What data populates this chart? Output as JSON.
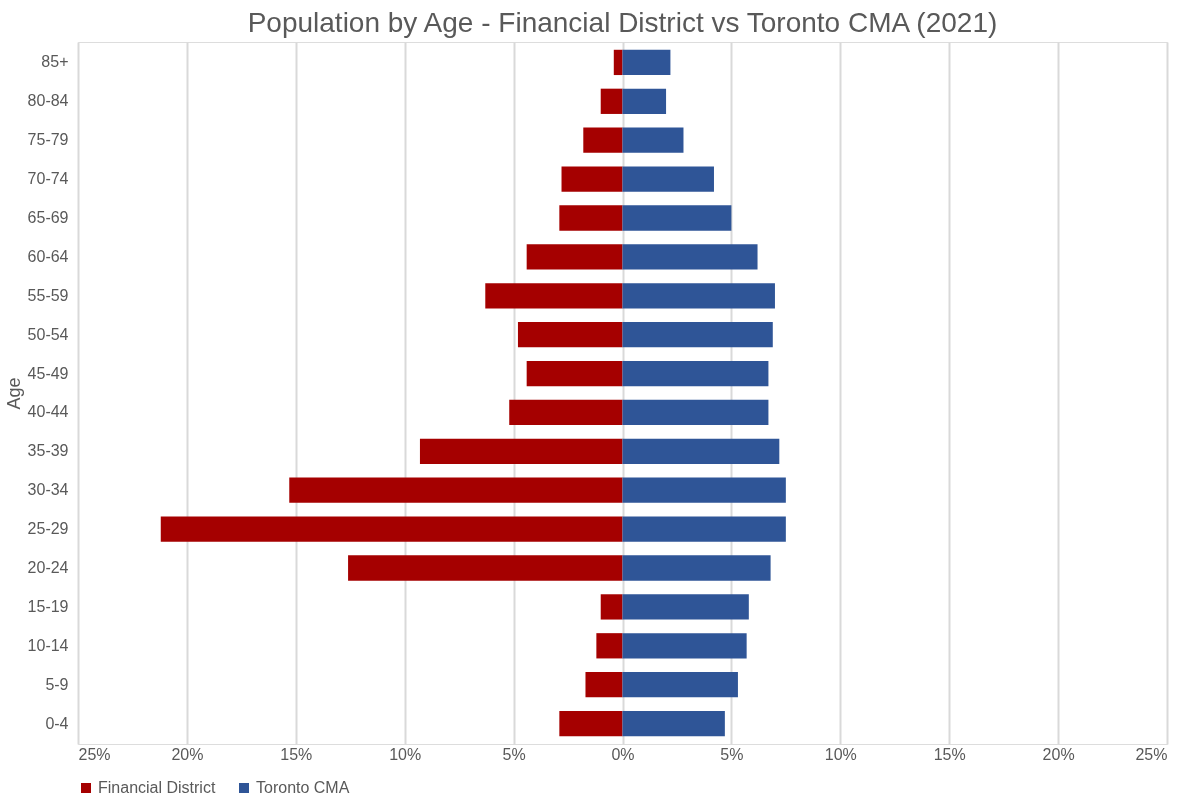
{
  "chart_data": {
    "type": "bar",
    "orientation": "horizontal",
    "title": "Population by Age - Financial District vs Toronto CMA (2021)",
    "ylabel": "Age",
    "categories": [
      "85+",
      "80-84",
      "75-79",
      "70-74",
      "65-69",
      "60-64",
      "55-59",
      "50-54",
      "45-49",
      "40-44",
      "35-39",
      "30-34",
      "25-29",
      "20-24",
      "15-19",
      "10-14",
      "5-9",
      "0-4"
    ],
    "series": [
      {
        "name": "Financial District",
        "color": "#a50000",
        "values": [
          -0.4,
          -1.0,
          -1.8,
          -2.8,
          -2.9,
          -4.4,
          -6.3,
          -4.8,
          -4.4,
          -5.2,
          -9.3,
          -15.3,
          -21.2,
          -12.6,
          -1.0,
          -1.2,
          -1.7,
          -2.9
        ]
      },
      {
        "name": "Toronto CMA",
        "color": "#2f5597",
        "values": [
          2.2,
          2.0,
          2.8,
          4.2,
          5.0,
          6.2,
          7.0,
          6.9,
          6.7,
          6.7,
          7.2,
          7.5,
          7.5,
          6.8,
          5.8,
          5.7,
          5.3,
          4.7
        ]
      }
    ],
    "xlim": [
      -25,
      25
    ],
    "xticks": [
      {
        "value": -25,
        "label": "25%"
      },
      {
        "value": -20,
        "label": "20%"
      },
      {
        "value": -15,
        "label": "15%"
      },
      {
        "value": -10,
        "label": "10%"
      },
      {
        "value": -5,
        "label": "5%"
      },
      {
        "value": 0,
        "label": "0%"
      },
      {
        "value": 5,
        "label": "5%"
      },
      {
        "value": 10,
        "label": "10%"
      },
      {
        "value": 15,
        "label": "15%"
      },
      {
        "value": 20,
        "label": "20%"
      },
      {
        "value": 25,
        "label": "25%"
      }
    ],
    "grid": "x",
    "legend": "bottom",
    "stacked": true
  }
}
